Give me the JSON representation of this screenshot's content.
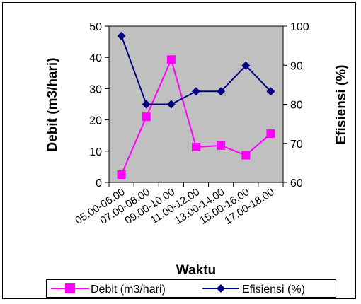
{
  "chart_data": {
    "type": "line",
    "categories": [
      "05.00-06.00",
      "07.00-08.00",
      "09.00-10.00",
      "11.00-12.00",
      "13.00-14.00",
      "15.00-16.00",
      "17.00-18.00"
    ],
    "series": [
      {
        "name": "Debit (m3/hari)",
        "axis": "left",
        "color": "#ff00ff",
        "marker": "square",
        "values": [
          2.5,
          21,
          39.3,
          11.3,
          11.8,
          8.7,
          15.6
        ]
      },
      {
        "name": "Efisiensi (%)",
        "axis": "right",
        "color": "#000080",
        "marker": "diamond",
        "values": [
          97.5,
          80,
          80,
          83.3,
          83.3,
          89.9,
          83.3
        ]
      }
    ],
    "xlabel": "Waktu",
    "ylabel": "Debit (m3/hari)",
    "y2label": "Efisiensi (%)",
    "ylim": [
      0,
      50
    ],
    "y2lim": [
      60,
      100
    ],
    "yticks": [
      "0",
      "10",
      "20",
      "30",
      "40",
      "50"
    ],
    "y2ticks": [
      "60",
      "70",
      "80",
      "90",
      "100"
    ],
    "plot_background": "#c0c0c0",
    "grid": false,
    "legend_position": "bottom"
  }
}
